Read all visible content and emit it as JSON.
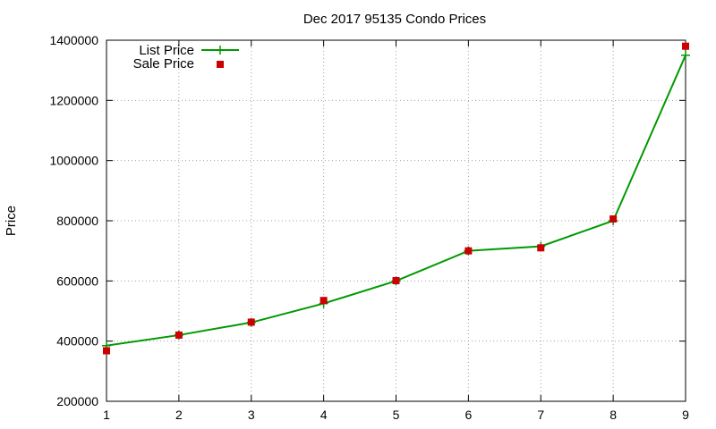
{
  "chart_data": {
    "type": "line",
    "title": "Dec 2017 95135 Condo Prices",
    "xlabel": "",
    "ylabel": "Price",
    "xlim": [
      1,
      9
    ],
    "ylim": [
      200000,
      1400000
    ],
    "x_ticks": [
      "1",
      "2",
      "3",
      "4",
      "5",
      "6",
      "7",
      "8",
      "9"
    ],
    "y_ticks": [
      "200000",
      "400000",
      "600000",
      "800000",
      "1000000",
      "1200000",
      "1400000"
    ],
    "grid": true,
    "legend_position": "top-left",
    "x": [
      1,
      2,
      3,
      4,
      5,
      6,
      7,
      8,
      9
    ],
    "series": [
      {
        "name": "List Price",
        "style": "line-points",
        "marker": "plus",
        "color": "#009900",
        "values": [
          385000,
          420000,
          462000,
          525000,
          600000,
          700000,
          715000,
          800000,
          1350000
        ]
      },
      {
        "name": "Sale Price",
        "style": "points",
        "marker": "square",
        "color": "#cc0000",
        "values": [
          368000,
          420000,
          463000,
          535000,
          601000,
          700000,
          710000,
          806000,
          1380000
        ]
      }
    ]
  }
}
